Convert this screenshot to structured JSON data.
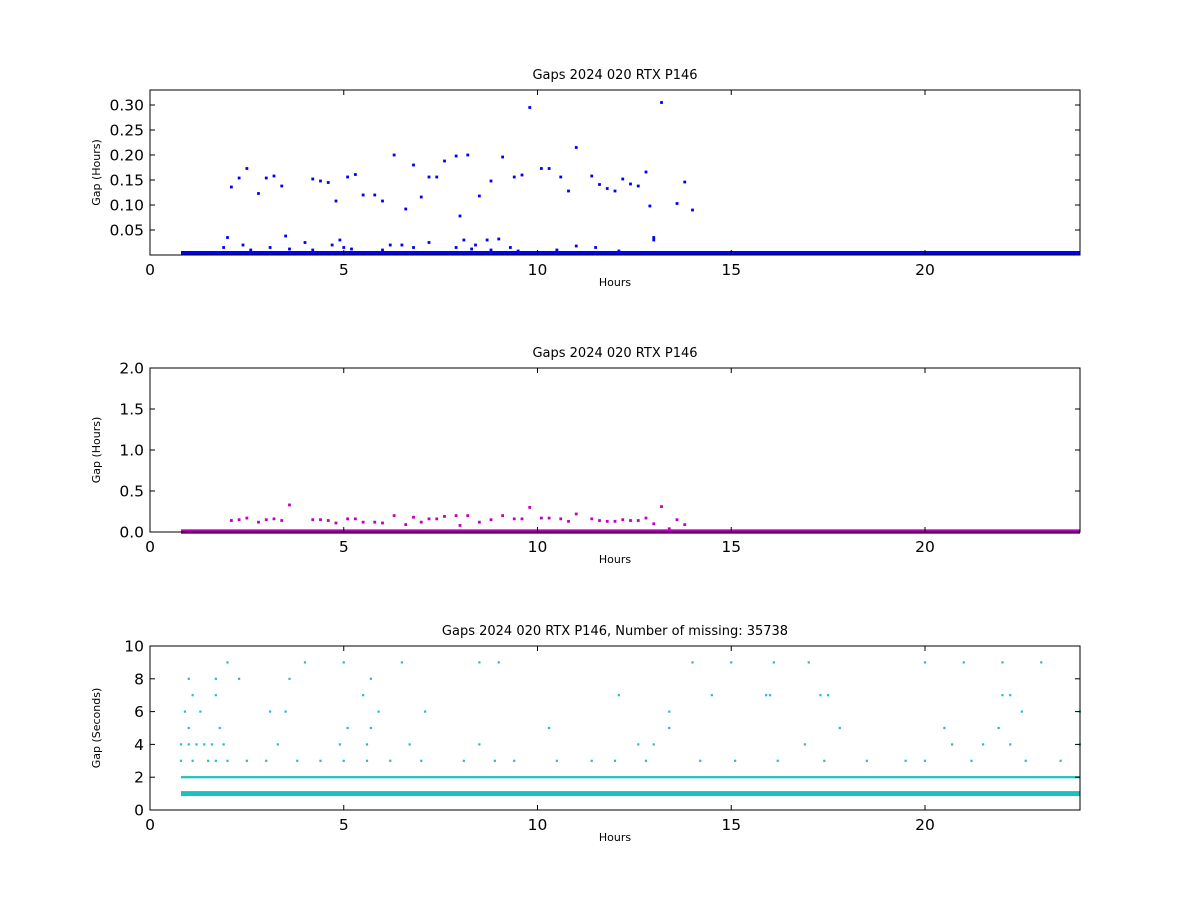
{
  "chart_data": [
    {
      "type": "scatter",
      "title": "Gaps 2024 020 RTX  P146",
      "xlabel": "Hours",
      "ylabel": "Gap (Hours)",
      "xlim": [
        0,
        24
      ],
      "ylim": [
        0,
        0.33
      ],
      "xticks": [
        0,
        5,
        10,
        15,
        20
      ],
      "yticks": [
        0.05,
        0.1,
        0.15,
        0.2,
        0.25,
        0.3
      ],
      "ytick_labels": [
        "0.05",
        "0.10",
        "0.15",
        "0.20",
        "0.25",
        "0.30"
      ],
      "grid": false,
      "color": "#0000ff",
      "baseline_bands": [
        {
          "x_start": 0.8,
          "x_end": 24,
          "y": 0.002
        }
      ],
      "points": {
        "x": [
          2.1,
          2.3,
          2.5,
          2.8,
          3.0,
          3.2,
          3.4,
          4.2,
          4.4,
          4.6,
          4.8,
          5.1,
          5.3,
          5.5,
          5.8,
          6.0,
          6.3,
          6.6,
          6.8,
          7.0,
          7.2,
          7.4,
          7.6,
          7.9,
          8.0,
          8.2,
          8.5,
          8.8,
          9.1,
          9.4,
          9.6,
          9.8,
          10.1,
          10.3,
          10.6,
          10.8,
          11.0,
          11.4,
          11.6,
          11.8,
          12.0,
          12.2,
          12.4,
          12.6,
          12.8,
          12.9,
          13.0,
          13.2,
          13.6,
          13.8,
          14.0,
          2.0,
          2.4,
          3.5,
          4.0,
          4.9,
          5.0,
          6.2,
          6.5,
          7.2,
          8.1,
          8.4,
          8.7,
          9.0,
          9.3,
          11.0,
          11.5,
          13.0,
          1.9,
          2.6,
          3.1,
          3.6,
          4.2,
          4.7,
          5.2,
          6.0,
          6.8,
          7.9,
          8.3,
          8.8,
          9.5,
          10.5,
          12.1
        ],
        "y": [
          0.136,
          0.154,
          0.173,
          0.123,
          0.154,
          0.158,
          0.138,
          0.152,
          0.148,
          0.145,
          0.108,
          0.156,
          0.161,
          0.12,
          0.12,
          0.108,
          0.2,
          0.092,
          0.18,
          0.116,
          0.156,
          0.156,
          0.188,
          0.198,
          0.078,
          0.2,
          0.118,
          0.148,
          0.196,
          0.156,
          0.16,
          0.295,
          0.173,
          0.173,
          0.156,
          0.128,
          0.215,
          0.158,
          0.141,
          0.133,
          0.128,
          0.152,
          0.142,
          0.138,
          0.166,
          0.098,
          0.035,
          0.305,
          0.103,
          0.146,
          0.09,
          0.035,
          0.02,
          0.038,
          0.025,
          0.03,
          0.015,
          0.02,
          0.02,
          0.025,
          0.03,
          0.02,
          0.03,
          0.032,
          0.015,
          0.018,
          0.015,
          0.03,
          0.015,
          0.01,
          0.015,
          0.012,
          0.01,
          0.02,
          0.012,
          0.01,
          0.015,
          0.015,
          0.012,
          0.01,
          0.008,
          0.01,
          0.008
        ]
      }
    },
    {
      "type": "scatter",
      "title": "Gaps 2024 020 RTX  P146",
      "xlabel": "Hours",
      "ylabel": "Gap (Hours)",
      "xlim": [
        0,
        24
      ],
      "ylim": [
        0,
        2.0
      ],
      "xticks": [
        0,
        5,
        10,
        15,
        20
      ],
      "yticks": [
        0.0,
        0.5,
        1.0,
        1.5,
        2.0
      ],
      "ytick_labels": [
        "0.0",
        "0.5",
        "1.0",
        "1.5",
        "2.0"
      ],
      "grid": false,
      "color": "#bf00bf",
      "baseline_bands": [
        {
          "x_start": 0.8,
          "x_end": 24,
          "y": 0.005
        }
      ],
      "points": {
        "x": [
          2.1,
          2.3,
          2.5,
          2.8,
          3.0,
          3.2,
          3.4,
          3.6,
          4.2,
          4.4,
          4.6,
          4.8,
          5.1,
          5.3,
          5.5,
          5.8,
          6.0,
          6.3,
          6.6,
          6.8,
          7.0,
          7.2,
          7.4,
          7.6,
          7.9,
          8.0,
          8.2,
          8.5,
          8.8,
          9.1,
          9.4,
          9.6,
          9.8,
          10.1,
          10.3,
          10.6,
          10.8,
          11.0,
          11.4,
          11.6,
          11.8,
          12.0,
          12.2,
          12.4,
          12.6,
          12.8,
          13.0,
          13.2,
          13.4,
          13.6,
          13.8
        ],
        "y": [
          0.14,
          0.15,
          0.17,
          0.12,
          0.15,
          0.16,
          0.14,
          0.33,
          0.15,
          0.15,
          0.14,
          0.11,
          0.16,
          0.16,
          0.12,
          0.12,
          0.11,
          0.2,
          0.09,
          0.18,
          0.12,
          0.16,
          0.16,
          0.19,
          0.2,
          0.08,
          0.2,
          0.12,
          0.15,
          0.2,
          0.16,
          0.16,
          0.3,
          0.17,
          0.17,
          0.16,
          0.13,
          0.22,
          0.16,
          0.14,
          0.13,
          0.13,
          0.15,
          0.14,
          0.14,
          0.17,
          0.1,
          0.31,
          0.04,
          0.15,
          0.09
        ]
      }
    },
    {
      "type": "scatter",
      "title": "Gaps 2024 020 RTX  P146, Number of missing: 35738",
      "xlabel": "Hours",
      "ylabel": "Gap (Seconds)",
      "xlim": [
        0,
        24
      ],
      "ylim": [
        0,
        10
      ],
      "xticks": [
        0,
        5,
        10,
        15,
        20
      ],
      "yticks": [
        0,
        2,
        4,
        6,
        8,
        10
      ],
      "ytick_labels": [
        "0",
        "2",
        "4",
        "6",
        "8",
        "10"
      ],
      "grid": false,
      "color": "#1fbfbf",
      "baseline_bands": [
        {
          "x_start": 0.8,
          "x_end": 24,
          "y": 1,
          "weight": "heavy"
        },
        {
          "x_start": 0.8,
          "x_end": 24,
          "y": 2,
          "weight": "light"
        }
      ],
      "points": {
        "x": [
          2.0,
          2.3,
          4.0,
          5.0,
          6.5,
          8.5,
          9.0,
          14.0,
          15.0,
          16.1,
          17.0,
          20.0,
          21.0,
          22.0,
          23.0,
          1.0,
          1.7,
          3.6,
          5.7,
          14.5,
          16.0,
          17.3,
          22.2,
          1.1,
          1.7,
          5.5,
          12.1,
          15.9,
          17.5,
          22.0,
          0.9,
          1.3,
          3.1,
          3.5,
          5.9,
          7.1,
          13.4,
          22.5,
          24.0,
          1.0,
          1.8,
          5.1,
          5.7,
          10.3,
          13.4,
          17.8,
          20.5,
          21.9,
          0.8,
          1.0,
          1.2,
          1.4,
          1.6,
          1.9,
          3.3,
          4.9,
          5.6,
          6.7,
          8.5,
          12.6,
          13.0,
          16.9,
          20.7,
          21.5,
          22.2,
          24.0,
          0.8,
          1.1,
          1.5,
          1.7,
          2.0,
          2.5,
          3.0,
          3.8,
          4.4,
          5.0,
          5.6,
          6.2,
          7.0,
          8.1,
          8.9,
          9.4,
          10.5,
          11.4,
          12.0,
          12.8,
          14.2,
          15.1,
          16.2,
          17.4,
          18.5,
          19.5,
          20.0,
          21.2,
          22.6,
          23.5
        ],
        "y": [
          9,
          8,
          9,
          9,
          9,
          9,
          9,
          9,
          9,
          9,
          9,
          9,
          9,
          9,
          9,
          8,
          8,
          8,
          8,
          7,
          7,
          7,
          7,
          7,
          7,
          7,
          7,
          7,
          7,
          7,
          6,
          6,
          6,
          6,
          6,
          6,
          6,
          6,
          6,
          5,
          5,
          5,
          5,
          5,
          5,
          5,
          5,
          5,
          4,
          4,
          4,
          4,
          4,
          4,
          4,
          4,
          4,
          4,
          4,
          4,
          4,
          4,
          4,
          4,
          4,
          4,
          3,
          3,
          3,
          3,
          3,
          3,
          3,
          3,
          3,
          3,
          3,
          3,
          3,
          3,
          3,
          3,
          3,
          3,
          3,
          3,
          3,
          3,
          3,
          3,
          3,
          3,
          3,
          3,
          3,
          3
        ]
      }
    }
  ]
}
